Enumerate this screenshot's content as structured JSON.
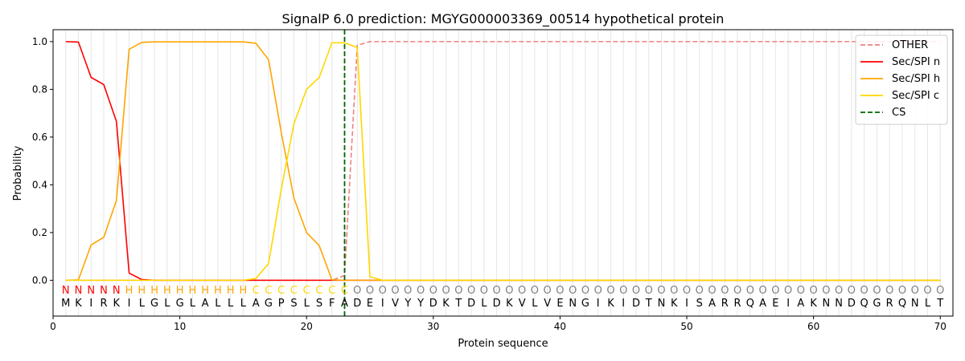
{
  "chart_data": {
    "type": "line",
    "title": "SignalP 6.0 prediction: MGYG000003369_00514 hypothetical protein",
    "xlabel": "Protein sequence",
    "ylabel": "Probability",
    "xlim": [
      0,
      71
    ],
    "ylim": [
      -0.15,
      1.05
    ],
    "xticks": [
      0,
      10,
      20,
      30,
      40,
      50,
      60,
      70
    ],
    "yticks": [
      0.0,
      0.2,
      0.4,
      0.6,
      0.8,
      1.0
    ],
    "x_tick_labels": [
      "0",
      "10",
      "20",
      "30",
      "40",
      "50",
      "60",
      "70"
    ],
    "y_tick_labels": [
      "0.0",
      "0.2",
      "0.4",
      "0.6",
      "0.8",
      "1.0"
    ],
    "grid": "vertical lines at each residue",
    "legend_position": "top-right",
    "colors": {
      "OTHER": "#f08080",
      "Sec/SPI n": "#ff0000",
      "Sec/SPI h": "#ffa500",
      "Sec/SPI c": "#ffd700",
      "CS": "#006400",
      "label_O": "#808080"
    },
    "sequence": [
      "M",
      "K",
      "I",
      "R",
      "K",
      "I",
      "L",
      "G",
      "L",
      "G",
      "L",
      "A",
      "L",
      "L",
      "L",
      "A",
      "G",
      "P",
      "S",
      "L",
      "S",
      "F",
      "A",
      "D",
      "E",
      "I",
      "V",
      "Y",
      "Y",
      "D",
      "K",
      "T",
      "D",
      "L",
      "D",
      "K",
      "V",
      "L",
      "V",
      "E",
      "N",
      "G",
      "I",
      "K",
      "I",
      "D",
      "T",
      "N",
      "K",
      "I",
      "S",
      "A",
      "R",
      "R",
      "Q",
      "A",
      "E",
      "I",
      "A",
      "K",
      "N",
      "N",
      "D",
      "Q",
      "G",
      "R",
      "Q",
      "N",
      "L",
      "T"
    ],
    "labels": [
      "N",
      "N",
      "N",
      "N",
      "N",
      "H",
      "H",
      "H",
      "H",
      "H",
      "H",
      "H",
      "H",
      "H",
      "H",
      "C",
      "C",
      "C",
      "C",
      "C",
      "C",
      "C",
      "C",
      "O",
      "O",
      "O",
      "O",
      "O",
      "O",
      "O",
      "O",
      "O",
      "O",
      "O",
      "O",
      "O",
      "O",
      "O",
      "O",
      "O",
      "O",
      "O",
      "O",
      "O",
      "O",
      "O",
      "O",
      "O",
      "O",
      "O",
      "O",
      "O",
      "O",
      "O",
      "O",
      "O",
      "O",
      "O",
      "O",
      "O",
      "O",
      "O",
      "O",
      "O",
      "O",
      "O",
      "O",
      "O",
      "O",
      "O"
    ],
    "cs_position": 23,
    "series": [
      {
        "name": "OTHER",
        "style": "dashed",
        "values": [
          0,
          0,
          0,
          0,
          0,
          0,
          0,
          0,
          0,
          0,
          0,
          0,
          0,
          0,
          0,
          0,
          0,
          0,
          0,
          0,
          0,
          0,
          0.02,
          0.985,
          1,
          1,
          1,
          1,
          1,
          1,
          1,
          1,
          1,
          1,
          1,
          1,
          1,
          1,
          1,
          1,
          1,
          1,
          1,
          1,
          1,
          1,
          1,
          1,
          1,
          1,
          1,
          1,
          1,
          1,
          1,
          1,
          1,
          1,
          1,
          1,
          1,
          1,
          1,
          1,
          1,
          1,
          1,
          1,
          1,
          1
        ]
      },
      {
        "name": "Sec/SPI n",
        "style": "solid",
        "values": [
          1,
          0.998,
          0.85,
          0.82,
          0.665,
          0.03,
          0.003,
          0,
          0,
          0,
          0,
          0,
          0,
          0,
          0,
          0,
          0,
          0,
          0,
          0,
          0,
          0,
          0,
          0,
          0,
          0,
          0,
          0,
          0,
          0,
          0,
          0,
          0,
          0,
          0,
          0,
          0,
          0,
          0,
          0,
          0,
          0,
          0,
          0,
          0,
          0,
          0,
          0,
          0,
          0,
          0,
          0,
          0,
          0,
          0,
          0,
          0,
          0,
          0,
          0,
          0,
          0,
          0,
          0,
          0,
          0,
          0,
          0,
          0,
          0
        ]
      },
      {
        "name": "Sec/SPI h",
        "style": "solid",
        "values": [
          0,
          0.002,
          0.148,
          0.18,
          0.335,
          0.968,
          0.997,
          0.999,
          0.999,
          0.999,
          0.999,
          0.999,
          0.999,
          0.999,
          0.999,
          0.993,
          0.925,
          0.62,
          0.345,
          0.2,
          0.145,
          0.002,
          0,
          0,
          0,
          0,
          0,
          0,
          0,
          0,
          0,
          0,
          0,
          0,
          0,
          0,
          0,
          0,
          0,
          0,
          0,
          0,
          0,
          0,
          0,
          0,
          0,
          0,
          0,
          0,
          0,
          0,
          0,
          0,
          0,
          0,
          0,
          0,
          0,
          0,
          0,
          0,
          0,
          0,
          0,
          0,
          0,
          0,
          0,
          0
        ]
      },
      {
        "name": "Sec/SPI c",
        "style": "solid",
        "values": [
          0,
          0,
          0,
          0,
          0,
          0,
          0,
          0,
          0,
          0,
          0,
          0,
          0,
          0,
          0,
          0.007,
          0.07,
          0.38,
          0.655,
          0.8,
          0.85,
          0.995,
          0.995,
          0.975,
          0.015,
          0,
          0,
          0,
          0,
          0,
          0,
          0,
          0,
          0,
          0,
          0,
          0,
          0,
          0,
          0,
          0,
          0,
          0,
          0,
          0,
          0,
          0,
          0,
          0,
          0,
          0,
          0,
          0,
          0,
          0,
          0,
          0,
          0,
          0,
          0,
          0,
          0,
          0,
          0,
          0,
          0,
          0,
          0,
          0,
          0
        ]
      }
    ],
    "legend": [
      "OTHER",
      "Sec/SPI n",
      "Sec/SPI h",
      "Sec/SPI c",
      "CS"
    ]
  }
}
